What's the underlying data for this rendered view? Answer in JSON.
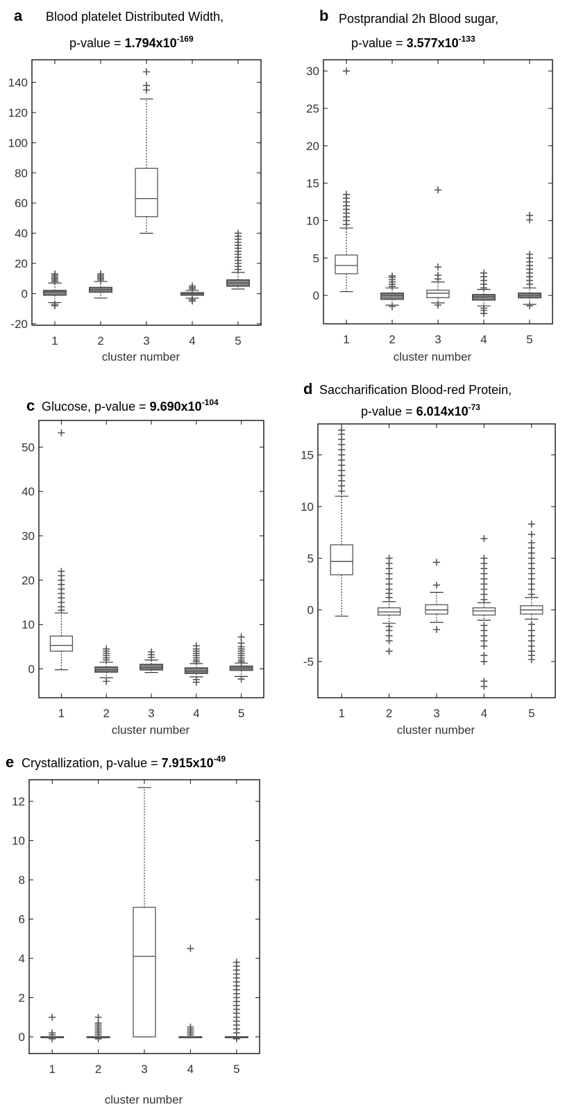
{
  "chart_data": [
    {
      "type": "box",
      "panel": "a",
      "title_line1": "Blood platelet Distributed Width,",
      "title_line2_prefix": "p-value = ",
      "pvalue_mantissa": "1.794x10",
      "pvalue_exponent": "-169",
      "xlabel": "cluster number",
      "ylabel": "",
      "categories": [
        "1",
        "2",
        "3",
        "4",
        "5"
      ],
      "ylim": [
        -21,
        155
      ],
      "yticks": [
        -20,
        0,
        20,
        40,
        60,
        80,
        100,
        120,
        140
      ],
      "ytick_labels": [
        "-20",
        "0",
        "20",
        "40",
        "60",
        "80",
        "100",
        "120",
        "140"
      ],
      "boxes": [
        {
          "min": -6,
          "q1": -1,
          "median": 1,
          "q3": 2,
          "max": 7,
          "outliers": [
            -8,
            -7,
            8,
            9,
            10,
            11,
            12,
            13
          ]
        },
        {
          "min": -3,
          "q1": 1,
          "median": 2.5,
          "q3": 4,
          "max": 8,
          "outliers": [
            9,
            10,
            11,
            12,
            13
          ]
        },
        {
          "min": 40,
          "q1": 51,
          "median": 63,
          "q3": 83,
          "max": 129,
          "outliers": [
            135,
            138,
            147
          ]
        },
        {
          "min": -3,
          "q1": -1,
          "median": 0,
          "q3": 0.5,
          "max": 2,
          "outliers": [
            -5,
            -4,
            3,
            4,
            5
          ]
        },
        {
          "min": 3,
          "q1": 5,
          "median": 7,
          "q3": 9,
          "max": 14,
          "outliers": [
            16,
            18,
            20,
            22,
            24,
            26,
            28,
            30,
            32,
            34,
            36,
            38,
            40
          ]
        }
      ]
    },
    {
      "type": "box",
      "panel": "b",
      "title_line1": "Postprandial 2h Blood sugar,",
      "title_line2_prefix": "p-value = ",
      "pvalue_mantissa": "3.577x10",
      "pvalue_exponent": "-133",
      "xlabel": "cluster number",
      "ylabel": "",
      "categories": [
        "1",
        "2",
        "3",
        "4",
        "5"
      ],
      "ylim": [
        -3.8,
        31.5
      ],
      "yticks": [
        0,
        5,
        10,
        15,
        20,
        25,
        30
      ],
      "ytick_labels": [
        "0",
        "5",
        "10",
        "15",
        "20",
        "25",
        "30"
      ],
      "boxes": [
        {
          "min": 0.5,
          "q1": 2.9,
          "median": 4,
          "q3": 5.4,
          "max": 9,
          "outliers": [
            9.5,
            10,
            10.5,
            11,
            11.5,
            12,
            12.5,
            13,
            13.5,
            30
          ]
        },
        {
          "min": -1.3,
          "q1": -0.5,
          "median": 0,
          "q3": 0.3,
          "max": 1,
          "outliers": [
            -1.5,
            1.2,
            1.5,
            1.8,
            2.1,
            2.4,
            2.6
          ]
        },
        {
          "min": -1,
          "q1": -0.3,
          "median": 0.3,
          "q3": 0.7,
          "max": 1.8,
          "outliers": [
            -1.3,
            2.2,
            2.7,
            3.8,
            14.1
          ]
        },
        {
          "min": -1.4,
          "q1": -0.6,
          "median": -0.2,
          "q3": 0.1,
          "max": 0.8,
          "outliers": [
            -2.4,
            -2,
            -1.7,
            1,
            1.5,
            2,
            2.5,
            3
          ]
        },
        {
          "min": -1.2,
          "q1": -0.3,
          "median": 0,
          "q3": 0.3,
          "max": 1,
          "outliers": [
            -1.4,
            1.5,
            2,
            2.5,
            3,
            3.5,
            4,
            4.5,
            5,
            5.5,
            10.1,
            10.7
          ]
        }
      ]
    },
    {
      "type": "box",
      "panel": "c",
      "title_line1": "Glucose, ",
      "title_line2_prefix": "p-value = ",
      "pvalue_mantissa": "9.690x10",
      "pvalue_exponent": "-104",
      "xlabel": "cluster number",
      "ylabel": "",
      "categories": [
        "1",
        "2",
        "3",
        "4",
        "5"
      ],
      "ylim": [
        -6.5,
        56
      ],
      "yticks": [
        0,
        10,
        20,
        30,
        40,
        50
      ],
      "ytick_labels": [
        "0",
        "10",
        "20",
        "30",
        "40",
        "50"
      ],
      "boxes": [
        {
          "min": -0.2,
          "q1": 4,
          "median": 5.3,
          "q3": 7.4,
          "max": 12.6,
          "outliers": [
            13.2,
            14,
            15,
            16,
            17,
            18,
            19,
            20,
            21,
            22,
            53.2
          ]
        },
        {
          "min": -2,
          "q1": -0.7,
          "median": -0.2,
          "q3": 0.4,
          "max": 1.5,
          "outliers": [
            -2.8,
            2,
            2.5,
            3,
            3.5,
            4,
            4.5
          ]
        },
        {
          "min": -0.8,
          "q1": -0.2,
          "median": 0.3,
          "q3": 1,
          "max": 2,
          "outliers": [
            2.6,
            3.2,
            3.8
          ]
        },
        {
          "min": -1.8,
          "q1": -1,
          "median": -0.5,
          "q3": 0.2,
          "max": 1.2,
          "outliers": [
            -3,
            -2.4,
            1.6,
            2,
            2.5,
            3,
            3.5,
            4,
            4.5,
            5.2
          ]
        },
        {
          "min": -1.7,
          "q1": -0.3,
          "median": 0.2,
          "q3": 0.6,
          "max": 1.3,
          "outliers": [
            -2.3,
            1.6,
            2,
            2.5,
            3,
            3.5,
            4,
            4.5,
            5,
            5.8,
            7.2
          ]
        }
      ]
    },
    {
      "type": "box",
      "panel": "d",
      "title_line1": "Saccharification Blood-red Protein,",
      "title_line2_prefix": "p-value = ",
      "pvalue_mantissa": "6.014x10",
      "pvalue_exponent": "-73",
      "xlabel": "cluster number",
      "ylabel": "",
      "categories": [
        "1",
        "2",
        "3",
        "4",
        "5"
      ],
      "ylim": [
        -8.5,
        18
      ],
      "yticks": [
        -5,
        0,
        5,
        10,
        15
      ],
      "ytick_labels": [
        "-5",
        "0",
        "5",
        "10",
        "15"
      ],
      "boxes": [
        {
          "min": -0.6,
          "q1": 3.4,
          "median": 4.7,
          "q3": 6.3,
          "max": 11,
          "outliers": [
            11.5,
            12,
            12.5,
            13,
            13.5,
            14,
            14.5,
            15,
            15.5,
            16,
            16.5,
            17,
            17.4
          ]
        },
        {
          "min": -1.3,
          "q1": -0.5,
          "median": -0.2,
          "q3": 0.2,
          "max": 0.8,
          "outliers": [
            -4,
            -3,
            -2.5,
            -2,
            -1.6,
            1.2,
            1.6,
            2,
            2.5,
            3,
            3.5,
            4,
            4.5,
            5
          ]
        },
        {
          "min": -1.2,
          "q1": -0.4,
          "median": 0,
          "q3": 0.5,
          "max": 1.7,
          "outliers": [
            -1.9,
            2.4,
            4.6
          ]
        },
        {
          "min": -1,
          "q1": -0.5,
          "median": -0.1,
          "q3": 0.2,
          "max": 0.7,
          "outliers": [
            -7.4,
            -6.9,
            -5,
            -4.4,
            -3.5,
            -3,
            -2.5,
            -2,
            -1.5,
            1,
            1.5,
            2,
            2.5,
            3,
            3.5,
            4,
            4.5,
            5,
            6.9
          ]
        },
        {
          "min": -0.9,
          "q1": -0.4,
          "median": 0,
          "q3": 0.4,
          "max": 1.2,
          "outliers": [
            -4.8,
            -4.4,
            -4,
            -3.5,
            -3,
            -2.5,
            -2,
            -1.4,
            1.5,
            2,
            2.5,
            3,
            3.5,
            4,
            4.5,
            5,
            5.5,
            6,
            6.5,
            7.3,
            8.3
          ]
        }
      ]
    },
    {
      "type": "box",
      "panel": "e",
      "title_line1": "Crystallization, ",
      "title_line2_prefix": "p-value = ",
      "pvalue_mantissa": "7.915x10",
      "pvalue_exponent": "-49",
      "xlabel": "cluster number",
      "ylabel": "",
      "categories": [
        "1",
        "2",
        "3",
        "4",
        "5"
      ],
      "ylim": [
        -0.85,
        13.1
      ],
      "yticks": [
        0,
        2,
        4,
        6,
        8,
        10,
        12
      ],
      "ytick_labels": [
        "0",
        "2",
        "4",
        "6",
        "8",
        "10",
        "12"
      ],
      "boxes": [
        {
          "min": 0,
          "q1": 0,
          "median": 0,
          "q3": 0,
          "max": 0,
          "outliers": [
            -0.1,
            0.1,
            0.2,
            1
          ]
        },
        {
          "min": 0,
          "q1": 0,
          "median": 0,
          "q3": 0,
          "max": 0,
          "outliers": [
            -0.1,
            0.1,
            0.2,
            0.3,
            0.4,
            0.5,
            0.6,
            0.7,
            1
          ]
        },
        {
          "min": 0,
          "q1": 0,
          "median": 4.1,
          "q3": 6.6,
          "max": 12.7,
          "outliers": []
        },
        {
          "min": 0,
          "q1": 0,
          "median": 0,
          "q3": 0,
          "max": 0,
          "outliers": [
            0.1,
            0.2,
            0.3,
            0.4,
            0.5,
            4.5
          ]
        },
        {
          "min": 0,
          "q1": 0,
          "median": 0,
          "q3": 0,
          "max": 0,
          "outliers": [
            -0.1,
            0.2,
            0.4,
            0.6,
            0.8,
            1,
            1.2,
            1.4,
            1.6,
            1.8,
            2,
            2.2,
            2.4,
            2.6,
            2.8,
            3,
            3.2,
            3.4,
            3.6,
            3.8
          ]
        }
      ]
    }
  ],
  "colors": {
    "box_stroke": "#555555",
    "filled_box": "#8a8a8a",
    "median": "#555555",
    "whisker": "#333333",
    "outlier": "#555555",
    "axis": "#111111",
    "text": "#111111"
  }
}
